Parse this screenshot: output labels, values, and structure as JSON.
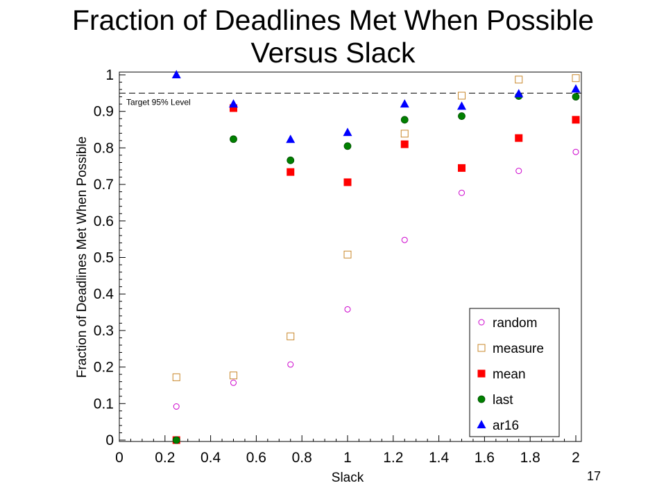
{
  "title_line1": "Fraction of Deadlines Met When Possible",
  "title_line2": "Versus Slack",
  "slide_number": "17",
  "chart_data": {
    "type": "scatter",
    "title": "Fraction of Deadlines Met When Possible Versus Slack",
    "xlabel": "Slack",
    "ylabel": "Fraction of Deadlines Met When Possible",
    "xlim": [
      0,
      2
    ],
    "ylim": [
      0,
      1
    ],
    "x_ticks": [
      "0",
      "0.2",
      "0.4",
      "0.6",
      "0.8",
      "1",
      "1.2",
      "1.4",
      "1.6",
      "1.8",
      "2"
    ],
    "y_ticks": [
      "0",
      "0.1",
      "0.2",
      "0.3",
      "0.4",
      "0.5",
      "0.6",
      "0.7",
      "0.8",
      "0.9",
      "1"
    ],
    "grid": false,
    "legend_position": "bottom-right",
    "reference_line": {
      "y": 0.95,
      "label": "Target 95% Level",
      "style": "dashed"
    },
    "x": [
      0.25,
      0.5,
      0.75,
      1.0,
      1.25,
      1.5,
      1.75,
      2.0
    ],
    "series": [
      {
        "name": "random",
        "marker": "circle-open",
        "color": "#cc00cc",
        "values": [
          0.092,
          0.157,
          0.207,
          0.358,
          0.548,
          0.677,
          0.737,
          0.789
        ]
      },
      {
        "name": "measure",
        "marker": "square-open",
        "color": "#c8872a",
        "values": [
          0.172,
          0.177,
          0.284,
          0.508,
          0.839,
          0.943,
          0.987,
          0.991
        ]
      },
      {
        "name": "mean",
        "marker": "square-filled",
        "color": "#ff0000",
        "values": [
          0.0,
          0.909,
          0.734,
          0.706,
          0.81,
          0.745,
          0.827,
          0.877
        ]
      },
      {
        "name": "last",
        "marker": "circle-filled",
        "color": "#008000",
        "values": [
          0.0,
          0.824,
          0.766,
          0.805,
          0.877,
          0.887,
          0.942,
          0.94
        ]
      },
      {
        "name": "ar16",
        "marker": "triangle-filled",
        "color": "#0000ff",
        "values": [
          1.0,
          0.92,
          0.823,
          0.842,
          0.92,
          0.914,
          0.948,
          0.961
        ]
      }
    ]
  }
}
